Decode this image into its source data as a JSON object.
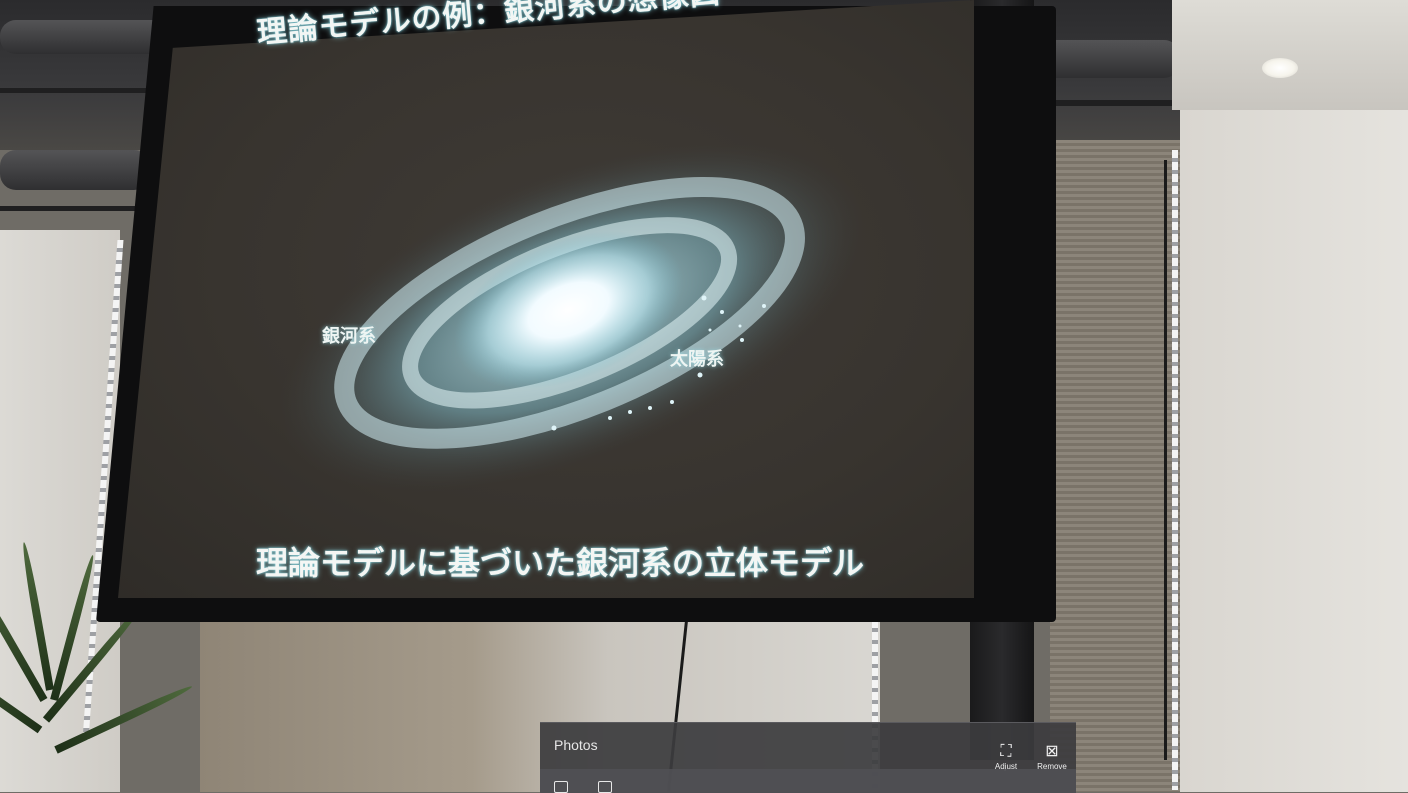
{
  "slide": {
    "title": "理論モデルの例：銀河系の想像図",
    "caption": "理論モデルに基づいた銀河系の立体モデル",
    "labels": {
      "milky_way": "銀河系",
      "solar_system": "太陽系"
    }
  },
  "photos_app": {
    "title": "Photos",
    "toolbar": {
      "adjust_label": "Adjust",
      "remove_label": "Remove"
    },
    "icons": [
      "adjust-icon",
      "remove-icon",
      "save-icon",
      "share-icon"
    ]
  },
  "colors": {
    "screen": "#38342f",
    "glow": "#7fd9e6",
    "panel": "#3c3c3e"
  }
}
